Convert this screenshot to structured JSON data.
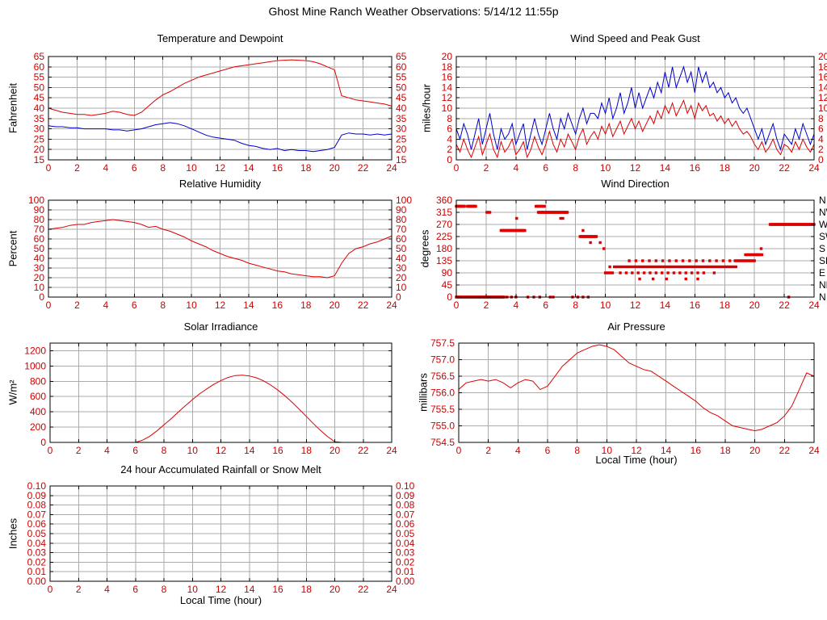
{
  "page_title": "Ghost Mine Ranch Weather Observations: 5/14/12 11:55p",
  "colors": {
    "series_red": "#dd0000",
    "series_blue": "#0000cc",
    "tick_label": "#cc0000",
    "grid": "#ababab",
    "axis": "#000000",
    "background": "#ffffff"
  },
  "chart_data": [
    {
      "id": "temperature",
      "type": "line",
      "title": "Temperature and Dewpoint",
      "ylabel": "Fahrenheit",
      "xlabel": "",
      "xlim": [
        0,
        24
      ],
      "ylim": [
        15,
        65
      ],
      "xticks": [
        0,
        2,
        4,
        6,
        8,
        10,
        12,
        14,
        16,
        18,
        20,
        22,
        24
      ],
      "yticks": [
        15,
        20,
        25,
        30,
        35,
        40,
        45,
        50,
        55,
        60,
        65
      ],
      "ytick_decimals": 0,
      "right_ticks": true,
      "series": [
        {
          "name": "temperature",
          "color": "#dd0000",
          "x_start": 0,
          "x_step": 0.5,
          "values": [
            40,
            39,
            38,
            37.5,
            37,
            37,
            36.5,
            37,
            37.5,
            38.5,
            38,
            37,
            36.5,
            38,
            41,
            44,
            46.5,
            48,
            50,
            52,
            53.5,
            55,
            56,
            57,
            58,
            59,
            60,
            60.5,
            61,
            61.5,
            62,
            62.5,
            63,
            63.2,
            63.4,
            63.2,
            63,
            62.5,
            61.5,
            60,
            58.5,
            46,
            45,
            44,
            43.5,
            43,
            42.5,
            42,
            41
          ]
        },
        {
          "name": "dewpoint",
          "color": "#0000cc",
          "x_start": 0,
          "x_step": 0.5,
          "values": [
            31.5,
            31,
            31,
            30.5,
            30.5,
            30,
            30,
            30,
            30,
            29.5,
            29.5,
            29,
            29.5,
            30,
            31,
            32,
            32.5,
            33,
            32.5,
            31.5,
            30,
            28.5,
            27,
            26,
            25.5,
            25,
            24.5,
            23,
            22,
            21.5,
            20.5,
            20,
            20.5,
            19.5,
            20,
            19.5,
            19.5,
            19,
            19.5,
            20,
            21,
            27,
            28,
            27.5,
            27.5,
            27,
            27.5,
            27,
            27.5
          ]
        }
      ]
    },
    {
      "id": "wind",
      "type": "line",
      "title": "Wind Speed and Peak Gust",
      "ylabel": "miles/hour",
      "xlabel": "",
      "xlim": [
        0,
        24
      ],
      "ylim": [
        0,
        20
      ],
      "xticks": [
        0,
        2,
        4,
        6,
        8,
        10,
        12,
        14,
        16,
        18,
        20,
        22,
        24
      ],
      "yticks": [
        0,
        2,
        4,
        6,
        8,
        10,
        12,
        14,
        16,
        18,
        20
      ],
      "ytick_decimals": 0,
      "right_ticks": true,
      "series": [
        {
          "name": "peak-gust",
          "color": "#0000cc",
          "x_start": 0,
          "x_step": 0.25,
          "values": [
            6,
            4,
            7,
            5,
            2,
            5,
            8,
            3,
            6,
            9,
            5,
            2,
            6,
            4,
            5,
            7,
            3,
            5,
            7,
            2,
            5,
            8,
            5,
            3,
            6,
            9,
            6,
            4,
            8,
            6,
            9,
            7,
            5,
            8,
            10,
            7,
            9,
            9,
            8,
            11,
            9,
            12,
            8,
            10,
            13,
            9,
            11,
            14,
            10,
            13,
            10,
            12,
            14,
            12,
            15,
            13,
            17,
            14,
            18,
            14,
            16,
            18,
            15,
            17,
            13,
            18,
            15,
            17,
            14,
            15,
            13,
            14,
            12,
            13,
            11,
            12,
            10,
            9,
            10,
            8,
            6,
            4,
            6,
            3,
            5,
            7,
            4,
            2,
            5,
            4,
            3,
            6,
            4,
            7,
            5,
            3,
            5
          ]
        },
        {
          "name": "wind-speed",
          "color": "#dd0000",
          "x_start": 0,
          "x_step": 0.25,
          "values": [
            3,
            1.5,
            4,
            2,
            0.5,
            2.5,
            4.5,
            1,
            3,
            5,
            2,
            0.5,
            3.5,
            1.5,
            2.5,
            4,
            1,
            2,
            3.5,
            0.5,
            2,
            4.5,
            2.5,
            1,
            3,
            5.5,
            3,
            1.5,
            4,
            2.5,
            5,
            3.5,
            2,
            4.5,
            6,
            3,
            4.5,
            5.5,
            4,
            6.5,
            5,
            7,
            4.5,
            6,
            7.5,
            5,
            6.5,
            8,
            6,
            7.5,
            5.5,
            7,
            8.5,
            7,
            9.5,
            8,
            10.5,
            9,
            11,
            8.5,
            10,
            11.5,
            9,
            10.5,
            8,
            11,
            9.5,
            10.5,
            8.5,
            9,
            7.5,
            8.5,
            7,
            8,
            6.5,
            7.5,
            6,
            5,
            5.5,
            4.5,
            3,
            2,
            3.5,
            1.5,
            2.5,
            4,
            2,
            1,
            3,
            2.5,
            1.5,
            3.5,
            2,
            4,
            2.5,
            1.5,
            3
          ]
        }
      ]
    },
    {
      "id": "humidity",
      "type": "line",
      "title": "Relative Humidity",
      "ylabel": "Percent",
      "xlabel": "",
      "xlim": [
        0,
        24
      ],
      "ylim": [
        0,
        100
      ],
      "xticks": [
        0,
        2,
        4,
        6,
        8,
        10,
        12,
        14,
        16,
        18,
        20,
        22,
        24
      ],
      "yticks": [
        0,
        10,
        20,
        30,
        40,
        50,
        60,
        70,
        80,
        90,
        100
      ],
      "ytick_decimals": 0,
      "right_ticks": true,
      "series": [
        {
          "name": "relative-humidity",
          "color": "#dd0000",
          "x_start": 0,
          "x_step": 0.5,
          "values": [
            70,
            71,
            72,
            74,
            75,
            75,
            77,
            78,
            79,
            80,
            79,
            78,
            77,
            75,
            72,
            73,
            70,
            68,
            65,
            62,
            58,
            55,
            52,
            48,
            45,
            42,
            40,
            38,
            35,
            33,
            31,
            29,
            27,
            26,
            24,
            23,
            22,
            21,
            21,
            20,
            22,
            35,
            45,
            50,
            52,
            55,
            57,
            60,
            63
          ]
        }
      ]
    },
    {
      "id": "wind-direction",
      "type": "scatter",
      "title": "Wind Direction",
      "ylabel": "degrees",
      "xlabel": "",
      "xlim": [
        0,
        24
      ],
      "ylim": [
        0,
        360
      ],
      "xticks": [
        0,
        2,
        4,
        6,
        8,
        10,
        12,
        14,
        16,
        18,
        20,
        22,
        24
      ],
      "yticks": [
        0,
        45,
        90,
        135,
        180,
        225,
        270,
        315,
        360
      ],
      "ytick_decimals": 0,
      "right_ticks": false,
      "right_labels": [
        "N",
        "NE",
        "E",
        "SE",
        "S",
        "SW",
        "W",
        "NW",
        "N"
      ],
      "dot_color": "#dd0000",
      "segments": [
        [
          0,
          0.55,
          337.5,
          0.05
        ],
        [
          0.75,
          1.3,
          337.5,
          0.05
        ],
        [
          0,
          3.2,
          0,
          0.05
        ],
        [
          3.4,
          4.2,
          0,
          0.3
        ],
        [
          4.8,
          5.6,
          0,
          0.4
        ],
        [
          6.3,
          6.5,
          0,
          0.2
        ],
        [
          7.8,
          8.9,
          0,
          0.35
        ],
        [
          2.05,
          2.25,
          315,
          0.1
        ],
        [
          3.0,
          4.6,
          247.5,
          0.05
        ],
        [
          5.35,
          5.95,
          337.5,
          0.07
        ],
        [
          5.5,
          7.45,
          315,
          0.05
        ],
        [
          8.3,
          9.4,
          225,
          0.05
        ],
        [
          10.0,
          10.5,
          90,
          0.12
        ],
        [
          10.6,
          18.9,
          112.5,
          0.16
        ],
        [
          11.0,
          16.8,
          90,
          0.4
        ],
        [
          11.6,
          18.6,
          135,
          0.45
        ],
        [
          18.7,
          20.0,
          135,
          0.1
        ],
        [
          19.4,
          20.5,
          157.5,
          0.1
        ],
        [
          21.05,
          24.0,
          270,
          0.05
        ]
      ],
      "dots": [
        [
          4.05,
          292.5
        ],
        [
          7.0,
          292.5
        ],
        [
          7.15,
          292.5
        ],
        [
          8.5,
          247.5
        ],
        [
          9.0,
          202.5
        ],
        [
          9.65,
          202.5
        ],
        [
          9.9,
          180
        ],
        [
          20.45,
          180
        ],
        [
          12.3,
          67.5
        ],
        [
          13.2,
          67.5
        ],
        [
          14.1,
          67.5
        ],
        [
          15.4,
          67.5
        ],
        [
          16.2,
          67.5
        ],
        [
          17.3,
          90
        ],
        [
          22.3,
          0
        ],
        [
          10.3,
          112.5
        ],
        [
          20.2,
          157.5
        ]
      ]
    },
    {
      "id": "solar",
      "type": "line",
      "title": "Solar Irradiance",
      "ylabel": "W/m²",
      "xlabel": "",
      "xlim": [
        0,
        24
      ],
      "ylim": [
        0,
        1300
      ],
      "xticks": [
        0,
        2,
        4,
        6,
        8,
        10,
        12,
        14,
        16,
        18,
        20,
        22,
        24
      ],
      "yticks": [
        0,
        200,
        400,
        600,
        800,
        1000,
        1200
      ],
      "ytick_decimals": 0,
      "right_ticks": false,
      "series": [
        {
          "name": "solar-irradiance",
          "color": "#dd0000",
          "x_start": 0,
          "x_step": 0.5,
          "values": [
            0,
            0,
            0,
            0,
            0,
            0,
            0,
            0,
            0,
            0,
            0,
            0,
            0,
            30,
            80,
            150,
            230,
            310,
            395,
            480,
            560,
            635,
            700,
            760,
            810,
            850,
            875,
            880,
            870,
            845,
            805,
            750,
            685,
            610,
            525,
            435,
            340,
            245,
            155,
            75,
            10,
            0,
            0,
            0,
            0,
            0,
            0,
            0,
            0
          ]
        }
      ]
    },
    {
      "id": "pressure",
      "type": "line",
      "title": "Air Pressure",
      "ylabel": "millibars",
      "xlabel": "Local Time (hour)",
      "xlim": [
        0,
        24
      ],
      "ylim": [
        754.5,
        757.5
      ],
      "xticks": [
        0,
        2,
        4,
        6,
        8,
        10,
        12,
        14,
        16,
        18,
        20,
        22,
        24
      ],
      "yticks": [
        754.5,
        755,
        755.5,
        756,
        756.5,
        757,
        757.5
      ],
      "ytick_decimals": 1,
      "right_ticks": false,
      "series": [
        {
          "name": "air-pressure",
          "color": "#dd0000",
          "x_start": 0,
          "x_step": 0.5,
          "values": [
            756.1,
            756.3,
            756.35,
            756.4,
            756.35,
            756.4,
            756.3,
            756.15,
            756.3,
            756.4,
            756.35,
            756.1,
            756.2,
            756.5,
            756.8,
            757.0,
            757.2,
            757.3,
            757.4,
            757.45,
            757.4,
            757.3,
            757.1,
            756.9,
            756.8,
            756.7,
            756.65,
            756.5,
            756.35,
            756.2,
            756.05,
            755.9,
            755.75,
            755.55,
            755.4,
            755.3,
            755.15,
            755.0,
            754.95,
            754.9,
            754.85,
            754.9,
            755.0,
            755.1,
            755.3,
            755.6,
            756.1,
            756.6,
            756.5
          ]
        }
      ]
    },
    {
      "id": "rainfall",
      "type": "line",
      "title": "24 hour Accumulated Rainfall or Snow Melt",
      "ylabel": "Inches",
      "xlabel": "Local Time (hour)",
      "xlim": [
        0,
        24
      ],
      "ylim": [
        0,
        0.1
      ],
      "xticks": [
        0,
        2,
        4,
        6,
        8,
        10,
        12,
        14,
        16,
        18,
        20,
        22,
        24
      ],
      "yticks": [
        0,
        0.01,
        0.02,
        0.03,
        0.04,
        0.05,
        0.06,
        0.07,
        0.08,
        0.09,
        0.1
      ],
      "ytick_decimals": 2,
      "right_ticks": true,
      "series": [
        {
          "name": "rainfall",
          "color": "#dd0000",
          "x_start": 0,
          "x_step": 24,
          "values": [
            0,
            0
          ]
        }
      ]
    }
  ]
}
